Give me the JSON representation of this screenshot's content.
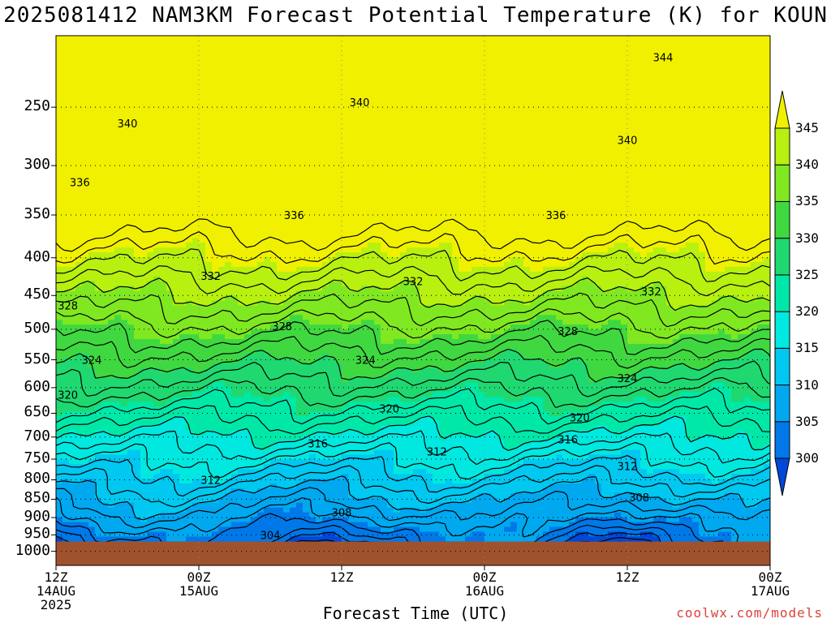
{
  "title": "2025081412 NAM3KM Forecast Potential Temperature (K) for KOUN",
  "credit": "coolwx.com/models",
  "chart_data": {
    "type": "contour",
    "title": "2025081412 NAM3KM Forecast Potential Temperature (K) for KOUN",
    "xlabel": "Forecast Time (UTC)",
    "ylabel": "",
    "y_axis": {
      "scale": "log",
      "reversed": true,
      "ticks": [
        250,
        300,
        350,
        400,
        450,
        500,
        550,
        600,
        650,
        700,
        750,
        800,
        850,
        900,
        950,
        1000
      ],
      "range": [
        200,
        1045
      ]
    },
    "x_axis": {
      "ticks": [
        {
          "l1": "12Z",
          "l2": "14AUG",
          "l3": "2025"
        },
        {
          "l1": "00Z",
          "l2": "15AUG",
          "l3": ""
        },
        {
          "l1": "12Z",
          "l2": "",
          "l3": ""
        },
        {
          "l1": "00Z",
          "l2": "16AUG",
          "l3": ""
        },
        {
          "l1": "12Z",
          "l2": "",
          "l3": ""
        },
        {
          "l1": "00Z",
          "l2": "17AUG",
          "l3": ""
        }
      ],
      "range_hours": [
        0,
        60
      ]
    },
    "colorbar": {
      "levels": [
        300,
        305,
        310,
        315,
        320,
        325,
        330,
        335,
        340,
        345
      ],
      "colors": [
        "#0048d8",
        "#0078e8",
        "#00a8f0",
        "#00c8f0",
        "#00e8e0",
        "#00e8a8",
        "#20d870",
        "#40d840",
        "#80e820",
        "#b8f010",
        "#f0f000"
      ]
    },
    "surface_pressure_hpa": 970,
    "surface_color": "#a0522d",
    "grid": "dotted",
    "contour_labels": [
      {
        "value": "344",
        "hour": 51,
        "p": 214
      },
      {
        "value": "340",
        "hour": 6,
        "p": 263
      },
      {
        "value": "340",
        "hour": 25.5,
        "p": 246
      },
      {
        "value": "340",
        "hour": 48,
        "p": 277
      },
      {
        "value": "336",
        "hour": 2,
        "p": 316
      },
      {
        "value": "336",
        "hour": 20,
        "p": 350
      },
      {
        "value": "336",
        "hour": 42,
        "p": 350
      },
      {
        "value": "332",
        "hour": 13,
        "p": 423
      },
      {
        "value": "332",
        "hour": 30,
        "p": 430
      },
      {
        "value": "332",
        "hour": 50,
        "p": 444
      },
      {
        "value": "328",
        "hour": 1,
        "p": 464
      },
      {
        "value": "328",
        "hour": 19,
        "p": 495
      },
      {
        "value": "328",
        "hour": 43,
        "p": 503
      },
      {
        "value": "324",
        "hour": 3,
        "p": 550
      },
      {
        "value": "324",
        "hour": 26,
        "p": 550
      },
      {
        "value": "324",
        "hour": 48,
        "p": 582
      },
      {
        "value": "320",
        "hour": 1,
        "p": 613
      },
      {
        "value": "320",
        "hour": 28,
        "p": 640
      },
      {
        "value": "320",
        "hour": 44,
        "p": 658
      },
      {
        "value": "316",
        "hour": 22,
        "p": 714
      },
      {
        "value": "316",
        "hour": 43,
        "p": 705
      },
      {
        "value": "312",
        "hour": 13,
        "p": 800
      },
      {
        "value": "312",
        "hour": 32,
        "p": 732
      },
      {
        "value": "312",
        "hour": 48,
        "p": 766
      },
      {
        "value": "308",
        "hour": 24,
        "p": 885
      },
      {
        "value": "308",
        "hour": 49,
        "p": 845
      },
      {
        "value": "304",
        "hour": 18,
        "p": 950
      }
    ]
  }
}
